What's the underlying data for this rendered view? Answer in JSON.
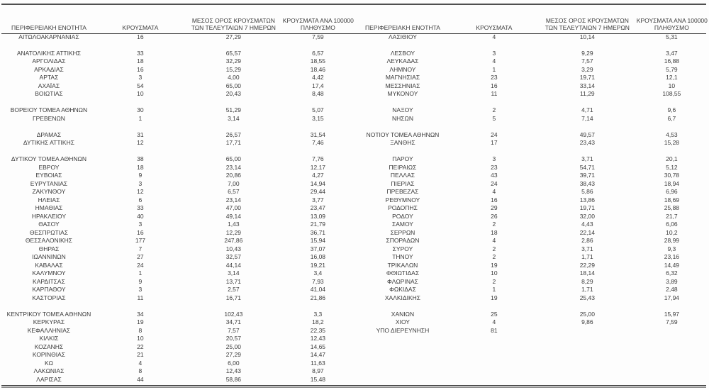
{
  "style": {
    "text_color": "#3b3b3b",
    "rule_color": "#4f4f4f",
    "background": "#fdfdfd"
  },
  "header": {
    "region": "ΠΕΡΙΦΕΡΕΙΑΚΗ ΕΝΟΤΗΤΑ",
    "cases": "ΚΡΟΥΣΜΑΤΑ",
    "avg7_line1": "ΜΕΣΟΣ ΟΡΟΣ ΚΡΟΥΣΜΑΤΩΝ",
    "avg7_line2": "ΤΩΝ ΤΕΛΕΥΤΑΙΩΝ 7 ΗΜΕΡΩΝ",
    "per100k_line1": "ΚΡΟΥΣΜΑΤΑ ΑΝΑ 100000",
    "per100k_line2": "ΠΛΗΘΥΣΜΟ"
  },
  "left_rows": [
    [
      "ΑΙΤΩΛΟΑΚΑΡΝΑΝΙΑΣ",
      "16",
      "27,29",
      "7,59"
    ],
    [],
    [
      "ΑΝΑΤΟΛΙΚΗΣ ΑΤΤΙΚΗΣ",
      "33",
      "65,57",
      "6,57"
    ],
    [
      "ΑΡΓΟΛΙΔΑΣ",
      "18",
      "32,29",
      "18,55"
    ],
    [
      "ΑΡΚΑΔΙΑΣ",
      "16",
      "15,29",
      "18,46"
    ],
    [
      "ΑΡΤΑΣ",
      "3",
      "4,00",
      "4,42"
    ],
    [
      "ΑΧΑΪΑΣ",
      "54",
      "65,00",
      "17,4"
    ],
    [
      "ΒΟΙΩΤΙΑΣ",
      "10",
      "20,43",
      "8,48"
    ],
    [],
    [
      "ΒΟΡΕΙΟΥ ΤΟΜΕΑ ΑΘΗΝΩΝ",
      "30",
      "51,29",
      "5,07"
    ],
    [
      "ΓΡΕΒΕΝΩΝ",
      "1",
      "3,14",
      "3,15"
    ],
    [],
    [
      "ΔΡΑΜΑΣ",
      "31",
      "26,57",
      "31,54"
    ],
    [
      "ΔΥΤΙΚΗΣ ΑΤΤΙΚΗΣ",
      "12",
      "17,71",
      "7,46"
    ],
    [],
    [
      "ΔΥΤΙΚΟΥ ΤΟΜΕΑ ΑΘΗΝΩΝ",
      "38",
      "65,00",
      "7,76"
    ],
    [
      "ΕΒΡΟΥ",
      "18",
      "23,14",
      "12,17"
    ],
    [
      "ΕΥΒΟΙΑΣ",
      "9",
      "20,86",
      "4,27"
    ],
    [
      "ΕΥΡΥΤΑΝΙΑΣ",
      "3",
      "7,00",
      "14,94"
    ],
    [
      "ΖΑΚΥΝΘΟΥ",
      "12",
      "6,57",
      "29,44"
    ],
    [
      "ΗΛΕΙΑΣ",
      "6",
      "23,14",
      "3,77"
    ],
    [
      "ΗΜΑΘΙΑΣ",
      "33",
      "47,00",
      "23,47"
    ],
    [
      "ΗΡΑΚΛΕΙΟΥ",
      "40",
      "49,14",
      "13,09"
    ],
    [
      "ΘΑΣΟΥ",
      "3",
      "1,43",
      "21,79"
    ],
    [
      "ΘΕΣΠΡΩΤΙΑΣ",
      "16",
      "12,29",
      "36,71"
    ],
    [
      "ΘΕΣΣΑΛΟΝΙΚΗΣ",
      "177",
      "247,86",
      "15,94"
    ],
    [
      "ΘΗΡΑΣ",
      "7",
      "10,43",
      "37,07"
    ],
    [
      "ΙΩΑΝΝΙΝΩΝ",
      "27",
      "32,57",
      "16,08"
    ],
    [
      "ΚΑΒΑΛΑΣ",
      "24",
      "44,14",
      "19,21"
    ],
    [
      "ΚΑΛΥΜΝΟΥ",
      "1",
      "3,14",
      "3,4"
    ],
    [
      "ΚΑΡΔΙΤΣΑΣ",
      "9",
      "13,71",
      "7,93"
    ],
    [
      "ΚΑΡΠΑΘΟΥ",
      "3",
      "2,57",
      "41,04"
    ],
    [
      "ΚΑΣΤΟΡΙΑΣ",
      "11",
      "16,71",
      "21,86"
    ],
    [],
    [
      "ΚΕΝΤΡΙΚΟΥ ΤΟΜΕΑ ΑΘΗΝΩΝ",
      "34",
      "102,43",
      "3,3"
    ],
    [
      "ΚΕΡΚΥΡΑΣ",
      "19",
      "34,71",
      "18,2"
    ],
    [
      "ΚΕΦΑΛΛΗΝΙΑΣ",
      "8",
      "7,57",
      "22,35"
    ],
    [
      "ΚΙΛΚΙΣ",
      "10",
      "20,57",
      "12,43"
    ],
    [
      "ΚΟΖΑΝΗΣ",
      "22",
      "25,00",
      "14,65"
    ],
    [
      "ΚΟΡΙΝΘΙΑΣ",
      "21",
      "27,29",
      "14,47"
    ],
    [
      "ΚΩ",
      "4",
      "6,00",
      "11,63"
    ],
    [
      "ΛΑΚΩΝΙΑΣ",
      "8",
      "12,43",
      "8,97"
    ],
    [
      "ΛΑΡΙΣΑΣ",
      "44",
      "58,86",
      "15,48"
    ]
  ],
  "right_rows": [
    [
      "ΛΑΣΙΘΙΟΥ",
      "4",
      "10,14",
      "5,31"
    ],
    [],
    [
      "ΛΕΣΒΟΥ",
      "3",
      "9,29",
      "3,47"
    ],
    [
      "ΛΕΥΚΑΔΑΣ",
      "4",
      "7,57",
      "16,88"
    ],
    [
      "ΛΗΜΝΟΥ",
      "1",
      "3,29",
      "5,79"
    ],
    [
      "ΜΑΓΝΗΣΙΑΣ",
      "23",
      "19,71",
      "12,1"
    ],
    [
      "ΜΕΣΣΗΝΙΑΣ",
      "16",
      "33,14",
      "10"
    ],
    [
      "ΜΥΚΟΝΟΥ",
      "11",
      "11,29",
      "108,55"
    ],
    [],
    [
      "ΝΑΞΟΥ",
      "2",
      "4,71",
      "9,6"
    ],
    [
      "ΝΗΣΩΝ",
      "5",
      "7,14",
      "6,7"
    ],
    [],
    [
      "ΝΟΤΙΟΥ ΤΟΜΕΑ ΑΘΗΝΩΝ",
      "24",
      "49,57",
      "4,53"
    ],
    [
      "ΞΑΝΘΗΣ",
      "17",
      "23,43",
      "15,28"
    ],
    [],
    [
      "ΠΑΡΟΥ",
      "3",
      "3,71",
      "20,1"
    ],
    [
      "ΠΕΙΡΑΙΩΣ",
      "23",
      "54,71",
      "5,12"
    ],
    [
      "ΠΕΛΛΑΣ",
      "43",
      "39,71",
      "30,78"
    ],
    [
      "ΠΙΕΡΙΑΣ",
      "24",
      "38,43",
      "18,94"
    ],
    [
      "ΠΡΕΒΕΖΑΣ",
      "4",
      "5,86",
      "6,96"
    ],
    [
      "ΡΕΘΥΜΝΟΥ",
      "16",
      "13,86",
      "18,69"
    ],
    [
      "ΡΟΔΟΠΗΣ",
      "29",
      "19,71",
      "25,88"
    ],
    [
      "ΡΟΔΟΥ",
      "26",
      "32,00",
      "21,7"
    ],
    [
      "ΣΑΜΟΥ",
      "2",
      "4,43",
      "6,06"
    ],
    [
      "ΣΕΡΡΩΝ",
      "18",
      "22,14",
      "10,2"
    ],
    [
      "ΣΠΟΡΑΔΩΝ",
      "4",
      "2,86",
      "28,99"
    ],
    [
      "ΣΥΡΟΥ",
      "2",
      "3,71",
      "9,3"
    ],
    [
      "ΤΗΝΟΥ",
      "2",
      "1,71",
      "23,16"
    ],
    [
      "ΤΡΙΚΑΛΩΝ",
      "19",
      "22,29",
      "14,49"
    ],
    [
      "ΦΘΙΩΤΙΔΑΣ",
      "10",
      "18,14",
      "6,32"
    ],
    [
      "ΦΛΩΡΙΝΑΣ",
      "2",
      "8,29",
      "3,89"
    ],
    [
      "ΦΩΚΙΔΑΣ",
      "1",
      "1,71",
      "2,48"
    ],
    [
      "ΧΑΛΚΙΔΙΚΗΣ",
      "19",
      "25,43",
      "17,94"
    ],
    [],
    [
      "ΧΑΝΙΩΝ",
      "25",
      "25,00",
      "15,97"
    ],
    [
      "ΧΙΟΥ",
      "4",
      "9,86",
      "7,59"
    ],
    [
      "ΥΠΟ ΔΙΕΡΕΥΝΗΣΗ",
      "81",
      "",
      ""
    ],
    [],
    [],
    [],
    [],
    [],
    []
  ]
}
